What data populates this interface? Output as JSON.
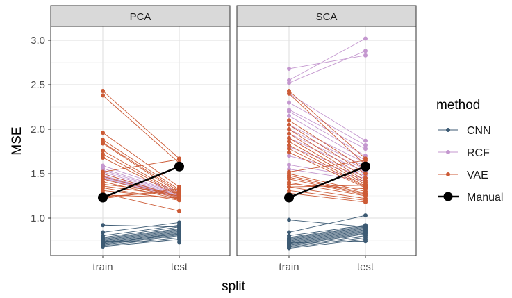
{
  "chart_data": {
    "type": "line",
    "facet_labels": [
      "PCA",
      "SCA"
    ],
    "categories": [
      "train",
      "test"
    ],
    "xlabel": "split",
    "ylabel": "MSE",
    "ylim": [
      0.6,
      3.2
    ],
    "y_ticks": [
      "1.0",
      "1.5",
      "2.0",
      "2.5",
      "3.0"
    ],
    "y_tick_values": [
      1.0,
      1.5,
      2.0,
      2.5,
      3.0
    ],
    "grid": true,
    "legend_placement": "right",
    "legend_title": "method",
    "legend": [
      {
        "label": "CNN",
        "color": "#3c5a73",
        "kind": "line-point"
      },
      {
        "label": "RCF",
        "color": "#c497cf",
        "kind": "line-point"
      },
      {
        "label": "VAE",
        "color": "#cc5a35",
        "kind": "line-point"
      },
      {
        "label": "Manual",
        "color": "#000000",
        "kind": "manual"
      }
    ],
    "panels": [
      {
        "label": "PCA",
        "series": [
          {
            "method": "CNN",
            "color": "#3c5a73",
            "pairs": [
              [
                0.92,
                0.9
              ],
              [
                0.84,
                0.95
              ],
              [
                0.8,
                0.92
              ],
              [
                0.78,
                0.9
              ],
              [
                0.77,
                0.88
              ],
              [
                0.76,
                0.87
              ],
              [
                0.75,
                0.86
              ],
              [
                0.74,
                0.85
              ],
              [
                0.73,
                0.84
              ],
              [
                0.72,
                0.83
              ],
              [
                0.72,
                0.82
              ],
              [
                0.71,
                0.81
              ],
              [
                0.7,
                0.8
              ],
              [
                0.69,
                0.78
              ],
              [
                0.68,
                0.76
              ],
              [
                0.74,
                0.73
              ]
            ]
          },
          {
            "method": "RCF",
            "color": "#c497cf",
            "pairs": [
              [
                1.59,
                1.3
              ],
              [
                1.56,
                1.28
              ],
              [
                1.54,
                1.27
              ],
              [
                1.52,
                1.26
              ],
              [
                1.5,
                1.25
              ],
              [
                1.48,
                1.24
              ],
              [
                1.47,
                1.24
              ],
              [
                1.46,
                1.23
              ],
              [
                1.45,
                1.22
              ],
              [
                1.44,
                1.22
              ]
            ]
          },
          {
            "method": "VAE",
            "color": "#cc5a35",
            "pairs": [
              [
                2.43,
                1.67
              ],
              [
                2.38,
                1.62
              ],
              [
                1.96,
                1.35
              ],
              [
                1.88,
                1.32
              ],
              [
                1.85,
                1.3
              ],
              [
                1.84,
                1.28
              ],
              [
                1.76,
                1.27
              ],
              [
                1.72,
                1.26
              ],
              [
                1.68,
                1.25
              ],
              [
                1.52,
                1.66
              ],
              [
                1.5,
                1.24
              ],
              [
                1.47,
                1.23
              ],
              [
                1.44,
                1.22
              ],
              [
                1.41,
                1.21
              ],
              [
                1.38,
                1.28
              ],
              [
                1.36,
                1.25
              ],
              [
                1.34,
                1.2
              ],
              [
                1.31,
                1.22
              ],
              [
                1.28,
                1.08
              ],
              [
                1.26,
                1.23
              ],
              [
                1.24,
                1.3
              ],
              [
                1.22,
                1.33
              ]
            ]
          }
        ],
        "manual": [
          1.23,
          1.58
        ]
      },
      {
        "label": "SCA",
        "series": [
          {
            "method": "CNN",
            "color": "#3c5a73",
            "pairs": [
              [
                0.98,
                0.9
              ],
              [
                0.84,
                1.03
              ],
              [
                0.8,
                0.92
              ],
              [
                0.78,
                0.91
              ],
              [
                0.77,
                0.9
              ],
              [
                0.76,
                0.89
              ],
              [
                0.75,
                0.88
              ],
              [
                0.74,
                0.87
              ],
              [
                0.73,
                0.86
              ],
              [
                0.72,
                0.85
              ],
              [
                0.71,
                0.84
              ],
              [
                0.7,
                0.83
              ],
              [
                0.69,
                0.82
              ],
              [
                0.68,
                0.8
              ],
              [
                0.67,
                0.78
              ],
              [
                0.66,
                0.76
              ],
              [
                0.72,
                0.74
              ]
            ]
          },
          {
            "method": "RCF",
            "color": "#c497cf",
            "pairs": [
              [
                2.68,
                2.83
              ],
              [
                2.55,
                3.02
              ],
              [
                2.52,
                2.88
              ],
              [
                2.4,
                1.87
              ],
              [
                2.3,
                1.82
              ],
              [
                2.22,
                1.78
              ],
              [
                2.2,
                1.7
              ],
              [
                2.15,
                1.65
              ],
              [
                2.05,
                1.62
              ],
              [
                2.0,
                1.58
              ],
              [
                1.95,
                1.55
              ],
              [
                1.9,
                1.52
              ],
              [
                1.8,
                1.5
              ],
              [
                1.7,
                1.48
              ],
              [
                1.6,
                1.45
              ],
              [
                1.55,
                1.42
              ]
            ]
          },
          {
            "method": "VAE",
            "color": "#cc5a35",
            "pairs": [
              [
                2.43,
                1.67
              ],
              [
                2.4,
                1.6
              ],
              [
                2.1,
                1.55
              ],
              [
                2.05,
                1.5
              ],
              [
                2.0,
                1.45
              ],
              [
                1.95,
                1.42
              ],
              [
                1.9,
                1.4
              ],
              [
                1.86,
                1.38
              ],
              [
                1.82,
                1.36
              ],
              [
                1.78,
                1.35
              ],
              [
                1.74,
                1.34
              ],
              [
                1.52,
                1.65
              ],
              [
                1.5,
                1.3
              ],
              [
                1.48,
                1.28
              ],
              [
                1.46,
                1.27
              ],
              [
                1.44,
                1.26
              ],
              [
                1.4,
                1.25
              ],
              [
                1.38,
                1.33
              ],
              [
                1.35,
                1.22
              ],
              [
                1.31,
                1.2
              ],
              [
                1.28,
                1.18
              ],
              [
                1.35,
                1.37
              ]
            ]
          }
        ],
        "manual": [
          1.23,
          1.58
        ]
      }
    ]
  }
}
